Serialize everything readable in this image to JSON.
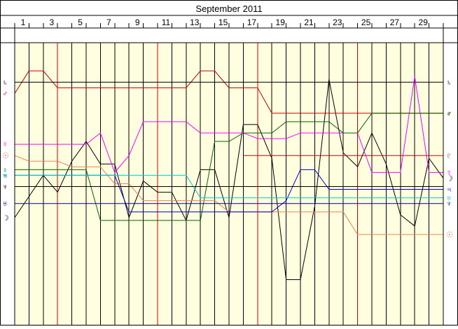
{
  "chart_data": {
    "type": "line",
    "title": "September 2011",
    "x_tick_labels": [
      "1",
      "3",
      "5",
      "7",
      "9",
      "11",
      "13",
      "15",
      "17",
      "19",
      "21",
      "23",
      "25",
      "27",
      "29"
    ],
    "x_range": [
      0,
      30
    ],
    "y_range": [
      0,
      1
    ],
    "grid": true,
    "colors": {
      "background": "#ffffe0",
      "grid_minor": "#000000",
      "grid_major": "#cc0000",
      "frame": "#000000"
    },
    "series": [
      {
        "color": "#000000",
        "left_glyph": "☽",
        "right_glyph": "☽",
        "x": [
          0,
          2,
          3,
          4,
          5,
          6,
          7,
          8,
          9,
          10,
          11,
          12,
          13,
          14,
          15,
          16,
          17,
          18,
          19,
          20,
          21,
          22,
          23,
          24,
          25,
          26,
          27,
          28,
          29,
          30
        ],
        "y": [
          0.38,
          0.53,
          0.47,
          0.58,
          0.65,
          0.57,
          0.57,
          0.38,
          0.51,
          0.47,
          0.47,
          0.37,
          0.55,
          0.55,
          0.38,
          0.71,
          0.71,
          0.59,
          0.16,
          0.16,
          0.42,
          0.87,
          0.61,
          0.56,
          0.68,
          0.57,
          0.39,
          0.35,
          0.59,
          0.52
        ]
      },
      {
        "color": "#cc0000",
        "left_glyph": "♂",
        "right_glyph": "♂",
        "x": [
          0,
          1,
          2,
          3,
          4,
          5,
          6,
          7,
          8,
          9,
          10,
          11,
          12,
          13,
          14,
          15,
          16,
          17,
          18,
          19,
          20,
          21,
          22,
          23,
          24,
          25,
          26,
          27,
          28,
          29,
          30
        ],
        "y": [
          0.82,
          0.9,
          0.9,
          0.84,
          0.84,
          0.84,
          0.84,
          0.84,
          0.84,
          0.84,
          0.84,
          0.84,
          0.84,
          0.9,
          0.9,
          0.84,
          0.84,
          0.84,
          0.75,
          0.75,
          0.75,
          0.75,
          0.75,
          0.75,
          0.75,
          0.75,
          0.75,
          0.75,
          0.75,
          0.75,
          0.75
        ]
      },
      {
        "color": "#000000",
        "left_glyph": "♄",
        "right_glyph": "♄",
        "x": [
          0,
          30
        ],
        "y": [
          0.86,
          0.86
        ]
      },
      {
        "color": "#ff00ff",
        "left_glyph": "☿",
        "right_glyph": "☿",
        "x": [
          0,
          1,
          2,
          3,
          4,
          5,
          6,
          7,
          8,
          9,
          10,
          11,
          12,
          13,
          14,
          15,
          16,
          17,
          18,
          19,
          20,
          21,
          22,
          23,
          24,
          25,
          26,
          27,
          28,
          29,
          30
        ],
        "y": [
          0.64,
          0.64,
          0.64,
          0.64,
          0.64,
          0.64,
          0.68,
          0.54,
          0.6,
          0.72,
          0.72,
          0.72,
          0.72,
          0.68,
          0.68,
          0.68,
          0.68,
          0.66,
          0.66,
          0.66,
          0.68,
          0.68,
          0.68,
          0.68,
          0.68,
          0.54,
          0.54,
          0.54,
          0.88,
          0.54,
          0.54
        ]
      },
      {
        "color": "#006400",
        "left_glyph": "♀",
        "right_glyph": "♀",
        "x": [
          0,
          1,
          2,
          3,
          4,
          5,
          6,
          7,
          8,
          9,
          10,
          11,
          12,
          13,
          14,
          15,
          16,
          17,
          18,
          19,
          20,
          21,
          22,
          23,
          24,
          25,
          26,
          27,
          28,
          29,
          30
        ],
        "y": [
          0.55,
          0.55,
          0.55,
          0.55,
          0.55,
          0.55,
          0.37,
          0.37,
          0.37,
          0.37,
          0.37,
          0.37,
          0.37,
          0.37,
          0.65,
          0.65,
          0.68,
          0.68,
          0.68,
          0.72,
          0.72,
          0.72,
          0.72,
          0.68,
          0.68,
          0.75,
          0.75,
          0.75,
          0.75,
          0.75,
          0.75
        ]
      },
      {
        "color": "#f08050",
        "left_glyph": "☉",
        "right_glyph": "☉",
        "x": [
          0,
          1,
          2,
          3,
          4,
          5,
          6,
          7,
          8,
          9,
          10,
          11,
          12,
          13,
          14,
          15,
          16,
          17,
          18,
          19,
          20,
          21,
          22,
          23,
          24,
          25,
          26,
          27,
          28,
          29,
          30
        ],
        "y": [
          0.6,
          0.58,
          0.58,
          0.58,
          0.56,
          0.56,
          0.56,
          0.5,
          0.5,
          0.44,
          0.44,
          0.44,
          0.44,
          0.44,
          0.44,
          0.4,
          0.4,
          0.4,
          0.4,
          0.4,
          0.4,
          0.4,
          0.4,
          0.4,
          0.32,
          0.32,
          0.32,
          0.32,
          0.32,
          0.32,
          0.32
        ]
      },
      {
        "color": "#cc0000",
        "left_glyph": "",
        "right_glyph": "♇",
        "x": [
          16,
          17,
          18,
          19,
          20,
          21,
          22,
          23,
          24,
          25,
          26,
          27,
          28,
          29,
          30
        ],
        "y": [
          0.6,
          0.6,
          0.6,
          0.6,
          0.6,
          0.6,
          0.6,
          0.6,
          0.6,
          0.6,
          0.6,
          0.6,
          0.6,
          0.6,
          0.6
        ]
      },
      {
        "color": "#0000cc",
        "left_glyph": "♃",
        "right_glyph": "♃",
        "x": [
          0,
          1,
          2,
          3,
          4,
          5,
          6,
          7,
          8,
          9,
          10,
          11,
          12,
          13,
          14,
          15,
          16,
          17,
          18,
          19,
          20,
          21,
          22,
          23,
          24,
          25,
          26,
          27,
          28,
          29,
          30
        ],
        "y": [
          0.53,
          0.53,
          0.53,
          0.53,
          0.53,
          0.53,
          0.53,
          0.53,
          0.4,
          0.4,
          0.4,
          0.4,
          0.4,
          0.4,
          0.4,
          0.4,
          0.4,
          0.4,
          0.4,
          0.44,
          0.55,
          0.55,
          0.48,
          0.48,
          0.48,
          0.48,
          0.48,
          0.48,
          0.48,
          0.48,
          0.48
        ]
      },
      {
        "color": "#00cccc",
        "left_glyph": "♅",
        "right_glyph": "♅",
        "x": [
          0,
          1,
          2,
          3,
          4,
          5,
          6,
          7,
          8,
          9,
          10,
          11,
          12,
          13,
          14,
          15,
          16,
          17,
          18,
          19,
          20,
          21,
          22,
          23,
          24,
          25,
          26,
          27,
          28,
          29,
          30
        ],
        "y": [
          0.53,
          0.53,
          0.53,
          0.53,
          0.53,
          0.53,
          0.53,
          0.53,
          0.53,
          0.53,
          0.53,
          0.53,
          0.53,
          0.45,
          0.45,
          0.45,
          0.45,
          0.45,
          0.45,
          0.45,
          0.45,
          0.45,
          0.45,
          0.45,
          0.45,
          0.45,
          0.45,
          0.45,
          0.45,
          0.45,
          0.45
        ]
      },
      {
        "color": "#000000",
        "left_glyph": "♆",
        "right_glyph": "",
        "x": [
          0,
          1,
          2,
          3,
          4,
          5,
          6,
          7,
          8,
          9,
          10,
          11,
          12,
          13,
          14,
          15,
          16,
          17,
          18,
          19,
          20,
          21,
          22,
          23,
          24,
          25,
          26,
          27,
          28,
          29,
          30
        ],
        "y": [
          0.49,
          0.49,
          0.49,
          0.49,
          0.49,
          0.49,
          0.49,
          0.49,
          0.49,
          0.49,
          0.49,
          0.49,
          0.49,
          0.49,
          0.49,
          0.49,
          0.49,
          0.49,
          0.49,
          0.49,
          0.49,
          0.49,
          0.49,
          0.49,
          0.49,
          0.49,
          0.49,
          0.49,
          0.49,
          0.49,
          0.49
        ]
      },
      {
        "color": "#00008b",
        "left_glyph": "♅",
        "right_glyph": "♆",
        "x": [
          0,
          1,
          2,
          3,
          4,
          5,
          6,
          7,
          8,
          9,
          10,
          11,
          12,
          13,
          14,
          15,
          16,
          17,
          18,
          19,
          20,
          21,
          22,
          23,
          24,
          25,
          26,
          27,
          28,
          29,
          30
        ],
        "y": [
          0.43,
          0.43,
          0.43,
          0.43,
          0.43,
          0.43,
          0.43,
          0.43,
          0.43,
          0.43,
          0.43,
          0.43,
          0.43,
          0.43,
          0.43,
          0.43,
          0.43,
          0.43,
          0.43,
          0.43,
          0.43,
          0.43,
          0.43,
          0.43,
          0.43,
          0.43,
          0.43,
          0.43,
          0.43,
          0.43,
          0.43
        ]
      }
    ]
  }
}
